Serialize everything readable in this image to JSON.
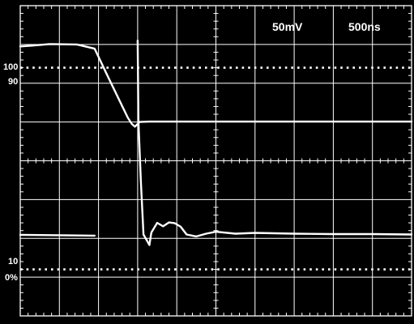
{
  "chart_data": {
    "type": "line",
    "title": "",
    "settings": {
      "volts_per_div": "50mV",
      "time_per_div": "500ns"
    },
    "reference_labels": {
      "ref_100": "100",
      "ref_90": "90",
      "ref_10": "10",
      "ref_0": "0%"
    },
    "grid": {
      "divisions_x": 10,
      "divisions_y": 8,
      "subdivisions": 5,
      "dotted_reference_levels_div": [
        1.2,
        6.4
      ]
    },
    "x_unit": "divisions",
    "y_unit": "divisions from bottom",
    "xlim": [
      0,
      10
    ],
    "ylim": [
      0,
      8
    ],
    "series": [
      {
        "x": [
          0,
          0.3,
          0.75,
          1.45,
          1.9,
          2.25,
          2.75,
          2.85,
          2.93,
          3.05,
          3.3,
          4,
          6,
          8,
          10
        ],
        "y": [
          6.95,
          6.97,
          7.01,
          7.0,
          6.89,
          6.15,
          5.11,
          4.95,
          4.88,
          5.0,
          5.01,
          5.01,
          5.01,
          5.01,
          5.01
        ]
      },
      {
        "x": [
          0,
          1,
          1.9
        ],
        "y": [
          2.09,
          2.08,
          2.07
        ]
      },
      {
        "x": [
          3.0,
          3.02,
          3.08,
          3.15,
          3.3
        ],
        "y": [
          7.1,
          5.0,
          3.5,
          2.1,
          1.83
        ]
      },
      {
        "x": [
          3.3,
          3.35,
          3.5,
          3.65,
          3.8,
          3.95,
          4.1,
          4.25,
          4.5,
          4.75,
          5,
          5.5,
          6,
          7,
          8,
          9,
          10
        ],
        "y": [
          1.83,
          2.15,
          2.4,
          2.31,
          2.41,
          2.39,
          2.3,
          2.1,
          2.05,
          2.12,
          2.17,
          2.12,
          2.14,
          2.12,
          2.11,
          2.11,
          2.1
        ]
      }
    ]
  }
}
